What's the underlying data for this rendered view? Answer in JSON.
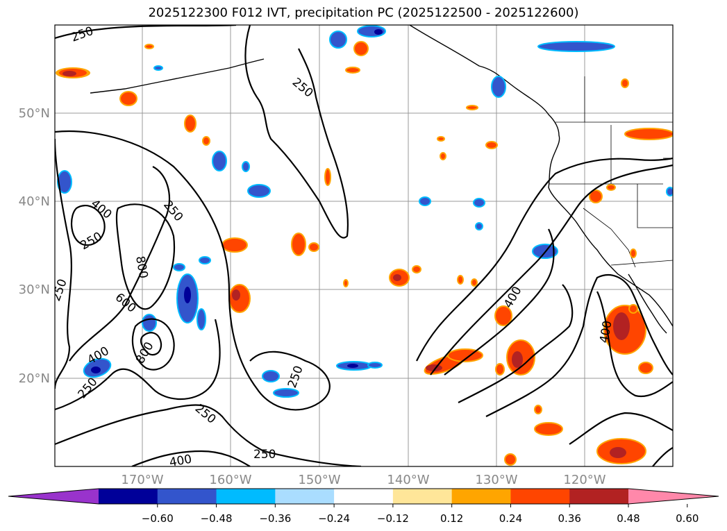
{
  "title": "2025122300 F012 IVT, precipitation PC (2025122500 - 2025122600)",
  "map": {
    "lat_labels": [
      "50°N",
      "40°N",
      "30°N",
      "20°N"
    ],
    "lon_labels": [
      "170°W",
      "160°W",
      "150°W",
      "140°W",
      "130°W",
      "120°W"
    ],
    "contour_labels": [
      "250",
      "250",
      "250",
      "250",
      "250",
      "250",
      "250",
      "250",
      "250",
      "400",
      "400",
      "400",
      "400",
      "400",
      "600",
      "800",
      "800"
    ]
  },
  "colorbar": {
    "tick_labels": [
      "−0.60",
      "−0.48",
      "−0.36",
      "−0.24",
      "−0.12",
      "0.12",
      "0.24",
      "0.36",
      "0.48",
      "0.60"
    ],
    "colors": [
      "#9933cc",
      "#000099",
      "#3355cc",
      "#00bbff",
      "#aaddff",
      "#ffffff",
      "#ffe699",
      "#ffa500",
      "#ff4500",
      "#b22222",
      "#ff88aa"
    ]
  }
}
